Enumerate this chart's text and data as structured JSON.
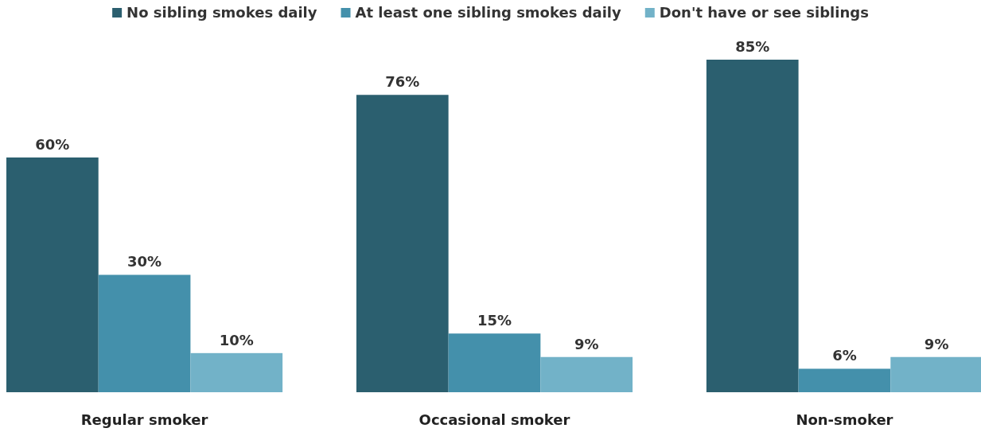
{
  "chart_data": {
    "type": "bar",
    "categories": [
      "Regular smoker",
      "Occasional smoker",
      "Non-smoker"
    ],
    "series": [
      {
        "name": "No sibling smokes daily",
        "color": "#2b5f6f",
        "values": [
          60,
          76,
          85
        ],
        "value_labels": [
          "60%",
          "76%",
          "85%"
        ]
      },
      {
        "name": "At least one sibling smokes daily",
        "color": "#4490ab",
        "values": [
          30,
          15,
          6
        ],
        "value_labels": [
          "30%",
          "15%",
          "6%"
        ]
      },
      {
        "name": "Don't have or see siblings",
        "color": "#72b2c8",
        "values": [
          10,
          9,
          9
        ],
        "value_labels": [
          "10%",
          "9%",
          "9%"
        ]
      }
    ],
    "legend": "top"
  }
}
